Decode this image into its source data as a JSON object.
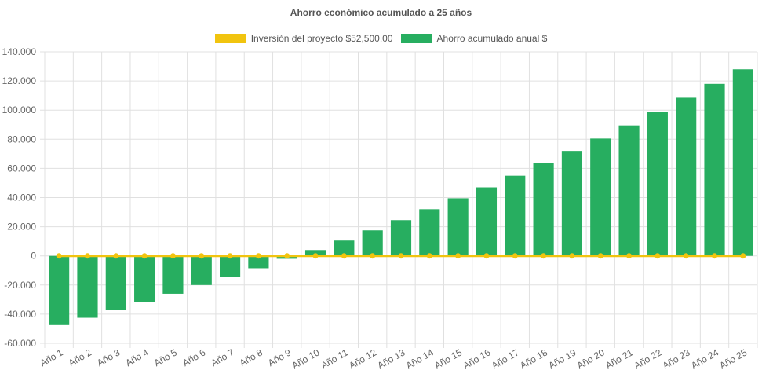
{
  "chart_data": {
    "type": "bar",
    "title": "Ahorro económico acumulado a 25 años",
    "categories": [
      "Año 1",
      "Año 2",
      "Año 3",
      "Año 4",
      "Año 5",
      "Año 6",
      "Año 7",
      "Año 8",
      "Año 9",
      "Año 10",
      "Año 11",
      "Año 12",
      "Año 13",
      "Año 14",
      "Año 15",
      "Año 16",
      "Año 17",
      "Año 18",
      "Año 19",
      "Año 20",
      "Año 21",
      "Año 22",
      "Año 23",
      "Año 24",
      "Año 25"
    ],
    "series": [
      {
        "name": "Inversión del proyecto $52,500.00",
        "kind": "line",
        "color": "#f1c40f",
        "values": [
          0,
          0,
          0,
          0,
          0,
          0,
          0,
          0,
          0,
          0,
          0,
          0,
          0,
          0,
          0,
          0,
          0,
          0,
          0,
          0,
          0,
          0,
          0,
          0,
          0
        ]
      },
      {
        "name": "Ahorro acumulado anual $",
        "kind": "bar",
        "color": "#27ae60",
        "values": [
          -47500,
          -42500,
          -37000,
          -31500,
          -26000,
          -20000,
          -14500,
          -8500,
          -2000,
          4000,
          10500,
          17500,
          24500,
          32000,
          39500,
          47000,
          55000,
          63500,
          72000,
          80500,
          89500,
          98500,
          108500,
          118000,
          128000
        ]
      }
    ],
    "ylim": [
      -60000,
      140000
    ],
    "y_ticks": [
      "140.000",
      "120.000",
      "100.000",
      "80.000",
      "60.000",
      "40.000",
      "20.000",
      "0",
      "-20.000",
      "-40.000",
      "-60.000"
    ],
    "xlabel": "",
    "ylabel": "",
    "grid": true,
    "legend_position": "top"
  }
}
